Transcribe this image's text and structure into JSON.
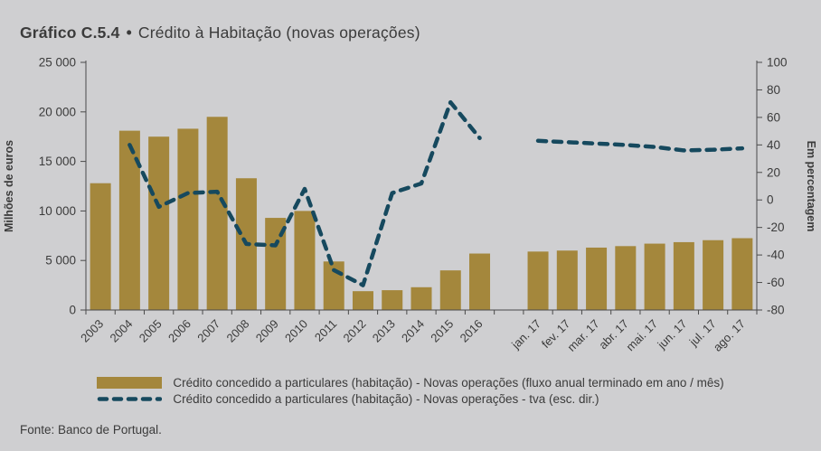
{
  "title": {
    "label": "Gráfico C.5.4",
    "separator": "•",
    "text": "Crédito à Habitação (novas operações)"
  },
  "footer": {
    "source": "Fonte: Banco de Portugal."
  },
  "colors": {
    "background": "#cfcfd1",
    "bar": "#a4873c",
    "line": "#16495e",
    "text": "#3b3b3b",
    "axis": "#4a4a4a"
  },
  "chart_data": {
    "type": "bar",
    "subtype": "combo bar + dashed line, dual axis",
    "title": "Crédito à Habitação (novas operações)",
    "ylabel_left": "Milhões de euros",
    "ylabel_right": "Em percentagem",
    "ylim_left": [
      0,
      25000
    ],
    "ylim_right": [
      -80,
      100
    ],
    "yticks_left": [
      0,
      5000,
      10000,
      15000,
      20000,
      25000
    ],
    "ytick_labels_left": [
      "0",
      "5 000",
      "10 000",
      "15 000",
      "20 000",
      "25 000"
    ],
    "yticks_right": [
      -80,
      -60,
      -40,
      -20,
      0,
      20,
      40,
      60,
      80,
      100
    ],
    "grid": false,
    "legend_position": "bottom",
    "categories": [
      "2003",
      "2004",
      "2005",
      "2006",
      "2007",
      "2008",
      "2009",
      "2010",
      "2011",
      "2012",
      "2013",
      "2014",
      "2015",
      "2016",
      "",
      "jan. 17",
      "fev. 17",
      "mar. 17",
      "abr. 17",
      "mai. 17",
      "jun. 17",
      "jul. 17",
      "ago. 17"
    ],
    "series": [
      {
        "name": "Crédito concedido a particulares (habitação) - Novas operações (fluxo anual terminado em ano / mês)",
        "type": "bar",
        "axis": "left",
        "values": [
          12800,
          18100,
          17500,
          18300,
          19500,
          13300,
          9300,
          10000,
          4900,
          1900,
          2000,
          2300,
          4000,
          5700,
          null,
          5900,
          6000,
          6300,
          6450,
          6700,
          6850,
          7050,
          7250
        ]
      },
      {
        "name": "Crédito concedido a particulares (habitação) - Novas operações - tva (esc. dir.)",
        "type": "dashed-line",
        "axis": "right",
        "values": [
          null,
          40,
          -5,
          5,
          6,
          -32,
          -33,
          8,
          -51,
          -62,
          5,
          12,
          71,
          45,
          null,
          43,
          42,
          41,
          40,
          38.5,
          36,
          36.5,
          37.5
        ]
      }
    ]
  }
}
